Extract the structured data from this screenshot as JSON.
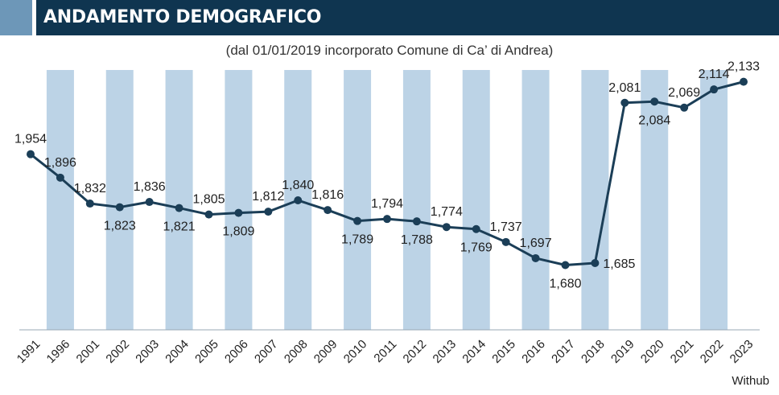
{
  "header": {
    "title": "ANDAMENTO DEMOGRAFICO"
  },
  "subtitle": "(dal 01/01/2019 incorporato Comune di Ca’ di Andrea)",
  "source": "Withub",
  "colors": {
    "header_bg": "#0f3550",
    "header_accent": "#6d97b8",
    "band": "#bcd3e6",
    "line": "#1b3e57"
  },
  "chart_data": {
    "type": "line",
    "title": "ANDAMENTO DEMOGRAFICO",
    "subtitle": "(dal 01/01/2019 incorporato Comune di Ca’ di Andrea)",
    "categories": [
      "1991",
      "1996",
      "2001",
      "2002",
      "2003",
      "2004",
      "2005",
      "2006",
      "2007",
      "2008",
      "2009",
      "2010",
      "2011",
      "2012",
      "2013",
      "2014",
      "2015",
      "2016",
      "2017",
      "2018",
      "2019",
      "2020",
      "2021",
      "2022",
      "2023"
    ],
    "values": [
      1954,
      1896,
      1832,
      1823,
      1836,
      1821,
      1805,
      1809,
      1812,
      1840,
      1816,
      1789,
      1794,
      1788,
      1774,
      1769,
      1737,
      1697,
      1680,
      1685,
      2081,
      2084,
      2069,
      2114,
      2133
    ],
    "labels": [
      "1,954",
      "1,896",
      "1,832",
      "1,823",
      "1,836",
      "1,821",
      "1,805",
      "1,809",
      "1,812",
      "1,840",
      "1,816",
      "1,789",
      "1,794",
      "1,788",
      "1,774",
      "1,769",
      "1,737",
      "1,697",
      "1,680",
      "1,685",
      "2,081",
      "2,084",
      "2,069",
      "2,114",
      "2,133"
    ],
    "label_position": [
      "above",
      "above",
      "above",
      "below",
      "above",
      "below",
      "above",
      "below",
      "above",
      "above",
      "above",
      "below",
      "above",
      "below",
      "above",
      "below",
      "above",
      "above",
      "below",
      "right",
      "above",
      "below",
      "above",
      "above",
      "above"
    ],
    "ylim": [
      1520,
      2170
    ],
    "background_bands": "alternating vertical bands behind every other category",
    "grid": false,
    "legend": "none"
  }
}
